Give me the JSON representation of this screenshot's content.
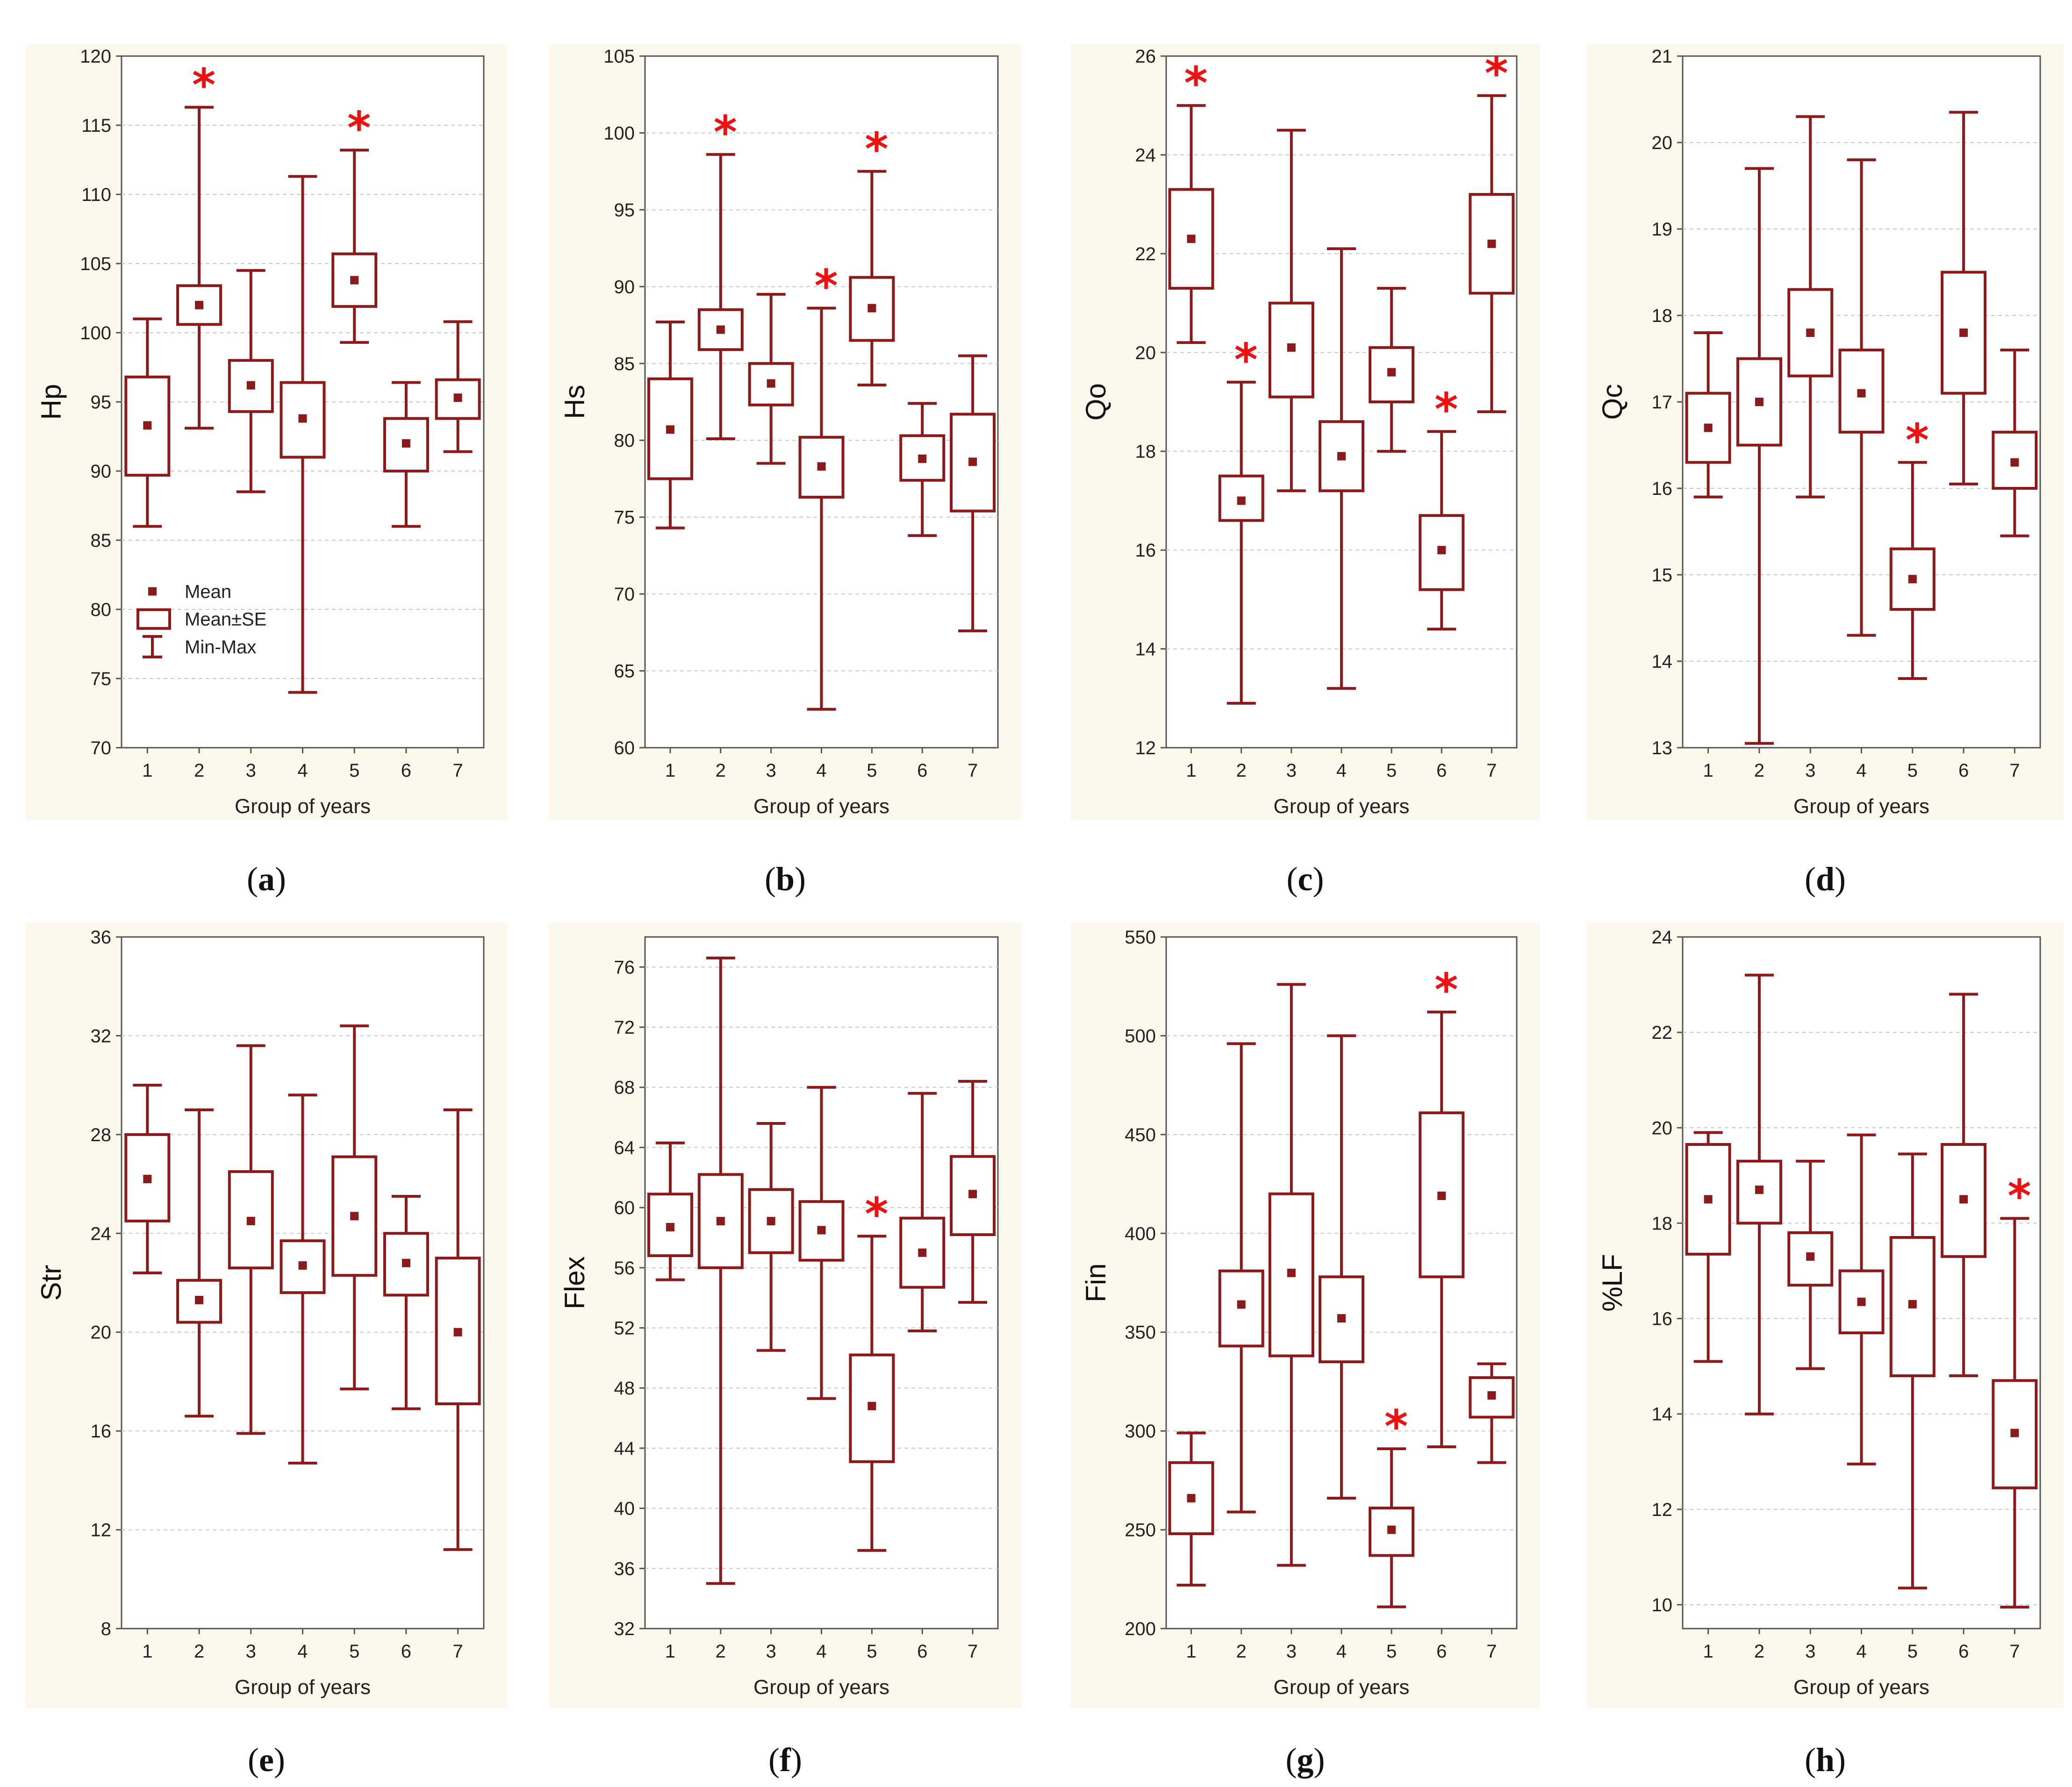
{
  "figure": {
    "panels": [
      {
        "id": "a",
        "caption_label": "a"
      },
      {
        "id": "b",
        "caption_label": "b"
      },
      {
        "id": "c",
        "caption_label": "c"
      },
      {
        "id": "d",
        "caption_label": "d"
      },
      {
        "id": "e",
        "caption_label": "e"
      },
      {
        "id": "f",
        "caption_label": "f"
      },
      {
        "id": "g",
        "caption_label": "g"
      },
      {
        "id": "h",
        "caption_label": "h"
      }
    ]
  },
  "colors": {
    "box": "#8b1a1a",
    "star": "#ee1111"
  },
  "legend": {
    "mean": "Mean",
    "se": "Mean±SE",
    "minmax": "Min-Max"
  },
  "chart_data": [
    {
      "id": "a",
      "type": "boxplot",
      "title": "",
      "xlabel": "Group of years",
      "ylabel": "Hp",
      "categories": [
        "1",
        "2",
        "3",
        "4",
        "5",
        "6",
        "7"
      ],
      "ylim": [
        70,
        120
      ],
      "yticks": [
        "70",
        "75",
        "80",
        "85",
        "90",
        "95",
        "100",
        "105",
        "110",
        "115",
        "120"
      ],
      "series": [
        {
          "group": "1",
          "mean": 93.3,
          "se_low": 89.7,
          "se_high": 96.8,
          "min": 86.0,
          "max": 101.0,
          "significant": false
        },
        {
          "group": "2",
          "mean": 102.0,
          "se_low": 100.6,
          "se_high": 103.4,
          "min": 93.1,
          "max": 116.3,
          "significant": true
        },
        {
          "group": "3",
          "mean": 96.2,
          "se_low": 94.3,
          "se_high": 98.0,
          "min": 88.5,
          "max": 104.5,
          "significant": false
        },
        {
          "group": "4",
          "mean": 93.8,
          "se_low": 91.0,
          "se_high": 96.4,
          "min": 74.0,
          "max": 111.3,
          "significant": false
        },
        {
          "group": "5",
          "mean": 103.8,
          "se_low": 101.9,
          "se_high": 105.7,
          "min": 99.3,
          "max": 113.2,
          "significant": true
        },
        {
          "group": "6",
          "mean": 92.0,
          "se_low": 90.0,
          "se_high": 93.8,
          "min": 86.0,
          "max": 96.4,
          "significant": false
        },
        {
          "group": "7",
          "mean": 95.3,
          "se_low": 93.8,
          "se_high": 96.6,
          "min": 91.4,
          "max": 100.8,
          "significant": false
        }
      ]
    },
    {
      "id": "b",
      "type": "boxplot",
      "title": "",
      "xlabel": "Group of years",
      "ylabel": "Hs",
      "categories": [
        "1",
        "2",
        "3",
        "4",
        "5",
        "6",
        "7"
      ],
      "ylim": [
        60,
        105
      ],
      "yticks": [
        "60",
        "65",
        "70",
        "75",
        "80",
        "85",
        "90",
        "95",
        "100",
        "105"
      ],
      "series": [
        {
          "group": "1",
          "mean": 80.7,
          "se_low": 77.5,
          "se_high": 84.0,
          "min": 74.3,
          "max": 87.7,
          "significant": false
        },
        {
          "group": "2",
          "mean": 87.2,
          "se_low": 85.9,
          "se_high": 88.5,
          "min": 80.1,
          "max": 98.6,
          "significant": true
        },
        {
          "group": "3",
          "mean": 83.7,
          "se_low": 82.3,
          "se_high": 85.0,
          "min": 78.5,
          "max": 89.5,
          "significant": false
        },
        {
          "group": "4",
          "mean": 78.3,
          "se_low": 76.3,
          "se_high": 80.2,
          "min": 62.5,
          "max": 88.6,
          "significant": true
        },
        {
          "group": "5",
          "mean": 88.6,
          "se_low": 86.5,
          "se_high": 90.6,
          "min": 83.6,
          "max": 97.5,
          "significant": true
        },
        {
          "group": "6",
          "mean": 78.8,
          "se_low": 77.4,
          "se_high": 80.3,
          "min": 73.8,
          "max": 82.4,
          "significant": false
        },
        {
          "group": "7",
          "mean": 78.6,
          "se_low": 75.4,
          "se_high": 81.7,
          "min": 67.6,
          "max": 85.5,
          "significant": false
        }
      ]
    },
    {
      "id": "c",
      "type": "boxplot",
      "title": "",
      "xlabel": "Group of years",
      "ylabel": "Qo",
      "categories": [
        "1",
        "2",
        "3",
        "4",
        "5",
        "6",
        "7"
      ],
      "ylim": [
        12,
        26
      ],
      "yticks": [
        "12",
        "14",
        "16",
        "18",
        "20",
        "22",
        "24",
        "26"
      ],
      "series": [
        {
          "group": "1",
          "mean": 22.3,
          "se_low": 21.3,
          "se_high": 23.3,
          "min": 20.2,
          "max": 25.0,
          "significant": true
        },
        {
          "group": "2",
          "mean": 17.0,
          "se_low": 16.6,
          "se_high": 17.5,
          "min": 12.9,
          "max": 19.4,
          "significant": true
        },
        {
          "group": "3",
          "mean": 20.1,
          "se_low": 19.1,
          "se_high": 21.0,
          "min": 17.2,
          "max": 24.5,
          "significant": false
        },
        {
          "group": "4",
          "mean": 17.9,
          "se_low": 17.2,
          "se_high": 18.6,
          "min": 13.2,
          "max": 22.1,
          "significant": false
        },
        {
          "group": "5",
          "mean": 19.6,
          "se_low": 19.0,
          "se_high": 20.1,
          "min": 18.0,
          "max": 21.3,
          "significant": false
        },
        {
          "group": "6",
          "mean": 16.0,
          "se_low": 15.2,
          "se_high": 16.7,
          "min": 14.4,
          "max": 18.4,
          "significant": true
        },
        {
          "group": "7",
          "mean": 22.2,
          "se_low": 21.2,
          "se_high": 23.2,
          "min": 18.8,
          "max": 25.2,
          "significant": true
        }
      ]
    },
    {
      "id": "d",
      "type": "boxplot",
      "title": "",
      "xlabel": "Group of years",
      "ylabel": "Qc",
      "categories": [
        "1",
        "2",
        "3",
        "4",
        "5",
        "6",
        "7"
      ],
      "ylim": [
        13,
        21
      ],
      "yticks": [
        "13",
        "14",
        "15",
        "16",
        "17",
        "18",
        "19",
        "20",
        "21"
      ],
      "series": [
        {
          "group": "1",
          "mean": 16.7,
          "se_low": 16.3,
          "se_high": 17.1,
          "min": 15.9,
          "max": 17.8,
          "significant": false
        },
        {
          "group": "2",
          "mean": 17.0,
          "se_low": 16.5,
          "se_high": 17.5,
          "min": 13.05,
          "max": 19.7,
          "significant": false
        },
        {
          "group": "3",
          "mean": 17.8,
          "se_low": 17.3,
          "se_high": 18.3,
          "min": 15.9,
          "max": 20.3,
          "significant": false
        },
        {
          "group": "4",
          "mean": 17.1,
          "se_low": 16.65,
          "se_high": 17.6,
          "min": 14.3,
          "max": 19.8,
          "significant": false
        },
        {
          "group": "5",
          "mean": 14.95,
          "se_low": 14.6,
          "se_high": 15.3,
          "min": 13.8,
          "max": 16.3,
          "significant": true
        },
        {
          "group": "6",
          "mean": 17.8,
          "se_low": 17.1,
          "se_high": 18.5,
          "min": 16.05,
          "max": 20.35,
          "significant": false
        },
        {
          "group": "7",
          "mean": 16.3,
          "se_low": 16.0,
          "se_high": 16.65,
          "min": 15.45,
          "max": 17.6,
          "significant": false
        }
      ]
    },
    {
      "id": "e",
      "type": "boxplot",
      "title": "",
      "xlabel": "Group of years",
      "ylabel": "Str",
      "categories": [
        "1",
        "2",
        "3",
        "4",
        "5",
        "6",
        "7"
      ],
      "ylim": [
        8,
        36
      ],
      "yticks": [
        "8",
        "12",
        "16",
        "20",
        "24",
        "28",
        "32",
        "36"
      ],
      "series": [
        {
          "group": "1",
          "mean": 26.2,
          "se_low": 24.5,
          "se_high": 28.0,
          "min": 22.4,
          "max": 30.0,
          "significant": false
        },
        {
          "group": "2",
          "mean": 21.3,
          "se_low": 20.4,
          "se_high": 22.1,
          "min": 16.6,
          "max": 29.0,
          "significant": false
        },
        {
          "group": "3",
          "mean": 24.5,
          "se_low": 22.6,
          "se_high": 26.5,
          "min": 15.9,
          "max": 31.6,
          "significant": false
        },
        {
          "group": "4",
          "mean": 22.7,
          "se_low": 21.6,
          "se_high": 23.7,
          "min": 14.7,
          "max": 29.6,
          "significant": false
        },
        {
          "group": "5",
          "mean": 24.7,
          "se_low": 22.3,
          "se_high": 27.1,
          "min": 17.7,
          "max": 32.4,
          "significant": false
        },
        {
          "group": "6",
          "mean": 22.8,
          "se_low": 21.5,
          "se_high": 24.0,
          "min": 16.9,
          "max": 25.5,
          "significant": false
        },
        {
          "group": "7",
          "mean": 20.0,
          "se_low": 17.1,
          "se_high": 23.0,
          "min": 11.2,
          "max": 29.0,
          "significant": false
        }
      ]
    },
    {
      "id": "f",
      "type": "boxplot",
      "title": "",
      "xlabel": "Group of years",
      "ylabel": "Flex",
      "categories": [
        "1",
        "2",
        "3",
        "4",
        "5",
        "6",
        "7"
      ],
      "ylim": [
        32,
        78
      ],
      "yticks": [
        "32",
        "36",
        "40",
        "44",
        "48",
        "52",
        "56",
        "60",
        "64",
        "68",
        "72",
        "76"
      ],
      "series": [
        {
          "group": "1",
          "mean": 58.7,
          "se_low": 56.8,
          "se_high": 60.9,
          "min": 55.2,
          "max": 64.3,
          "significant": false
        },
        {
          "group": "2",
          "mean": 59.1,
          "se_low": 56.0,
          "se_high": 62.2,
          "min": 35.0,
          "max": 76.6,
          "significant": false
        },
        {
          "group": "3",
          "mean": 59.1,
          "se_low": 57.0,
          "se_high": 61.2,
          "min": 50.5,
          "max": 65.6,
          "significant": false
        },
        {
          "group": "4",
          "mean": 58.5,
          "se_low": 56.5,
          "se_high": 60.4,
          "min": 47.3,
          "max": 68.0,
          "significant": false
        },
        {
          "group": "5",
          "mean": 46.8,
          "se_low": 43.1,
          "se_high": 50.2,
          "min": 37.2,
          "max": 58.1,
          "significant": true
        },
        {
          "group": "6",
          "mean": 57.0,
          "se_low": 54.7,
          "se_high": 59.3,
          "min": 51.8,
          "max": 67.6,
          "significant": false
        },
        {
          "group": "7",
          "mean": 60.9,
          "se_low": 58.2,
          "se_high": 63.4,
          "min": 53.7,
          "max": 68.4,
          "significant": false
        }
      ]
    },
    {
      "id": "g",
      "type": "boxplot",
      "title": "",
      "xlabel": "Group of years",
      "ylabel": "Fin",
      "categories": [
        "1",
        "2",
        "3",
        "4",
        "5",
        "6",
        "7"
      ],
      "ylim": [
        200,
        550
      ],
      "yticks": [
        "200",
        "250",
        "300",
        "350",
        "400",
        "450",
        "500",
        "550"
      ],
      "series": [
        {
          "group": "1",
          "mean": 266,
          "se_low": 248,
          "se_high": 284,
          "min": 222,
          "max": 299,
          "significant": false
        },
        {
          "group": "2",
          "mean": 364,
          "se_low": 343,
          "se_high": 381,
          "min": 259,
          "max": 496,
          "significant": false
        },
        {
          "group": "3",
          "mean": 380,
          "se_low": 338,
          "se_high": 420,
          "min": 232,
          "max": 526,
          "significant": false
        },
        {
          "group": "4",
          "mean": 357,
          "se_low": 335,
          "se_high": 378,
          "min": 266,
          "max": 500,
          "significant": false
        },
        {
          "group": "5",
          "mean": 250,
          "se_low": 237,
          "se_high": 261,
          "min": 211,
          "max": 291,
          "significant": true
        },
        {
          "group": "6",
          "mean": 419,
          "se_low": 378,
          "se_high": 461,
          "min": 292,
          "max": 512,
          "significant": true
        },
        {
          "group": "7",
          "mean": 318,
          "se_low": 307,
          "se_high": 327,
          "min": 284,
          "max": 334,
          "significant": false
        }
      ]
    },
    {
      "id": "h",
      "type": "boxplot",
      "title": "",
      "xlabel": "Group of years",
      "ylabel": "%LF",
      "categories": [
        "1",
        "2",
        "3",
        "4",
        "5",
        "6",
        "7"
      ],
      "ylim": [
        9.5,
        24
      ],
      "yticks": [
        "10",
        "12",
        "14",
        "16",
        "18",
        "20",
        "22",
        "24"
      ],
      "series": [
        {
          "group": "1",
          "mean": 18.5,
          "se_low": 17.35,
          "se_high": 19.65,
          "min": 15.1,
          "max": 19.9,
          "significant": false
        },
        {
          "group": "2",
          "mean": 18.7,
          "se_low": 18.0,
          "se_high": 19.3,
          "min": 14.0,
          "max": 23.2,
          "significant": false
        },
        {
          "group": "3",
          "mean": 17.3,
          "se_low": 16.7,
          "se_high": 17.8,
          "min": 14.95,
          "max": 19.3,
          "significant": false
        },
        {
          "group": "4",
          "mean": 16.35,
          "se_low": 15.7,
          "se_high": 17.0,
          "min": 12.95,
          "max": 19.85,
          "significant": false
        },
        {
          "group": "5",
          "mean": 16.3,
          "se_low": 14.8,
          "se_high": 17.7,
          "min": 10.35,
          "max": 19.45,
          "significant": false
        },
        {
          "group": "6",
          "mean": 18.5,
          "se_low": 17.3,
          "se_high": 19.65,
          "min": 14.8,
          "max": 22.8,
          "significant": false
        },
        {
          "group": "7",
          "mean": 13.6,
          "se_low": 12.45,
          "se_high": 14.7,
          "min": 9.95,
          "max": 18.1,
          "significant": true
        }
      ]
    }
  ]
}
